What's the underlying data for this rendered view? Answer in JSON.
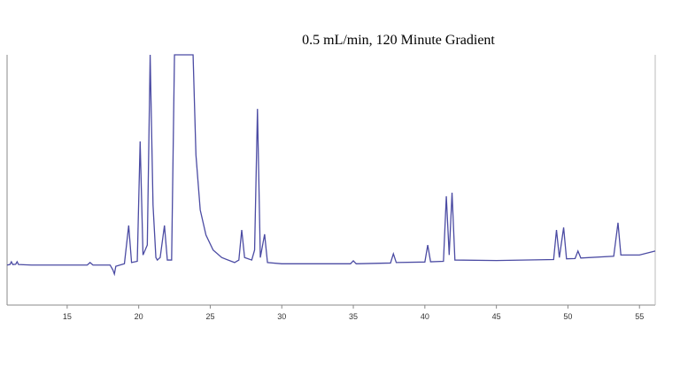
{
  "chart_data": {
    "type": "line",
    "title": "0.5 mL/min, 120 Minute Gradient",
    "x": [
      10.8,
      11.0,
      11.1,
      11.2,
      11.4,
      11.5,
      11.6,
      12.5,
      16.4,
      16.6,
      16.8,
      18.0,
      18.2,
      18.3,
      18.4,
      19.0,
      19.3,
      19.5,
      19.9,
      20.1,
      20.3,
      20.6,
      20.8,
      21.0,
      21.2,
      21.3,
      21.5,
      21.8,
      22.0,
      22.3,
      22.5,
      23.8,
      24.0,
      24.3,
      24.7,
      25.2,
      25.8,
      26.7,
      27.0,
      27.2,
      27.4,
      27.9,
      28.1,
      28.3,
      28.5,
      28.8,
      29.0,
      30.0,
      34.8,
      35.0,
      35.2,
      37.6,
      37.8,
      38.0,
      40.0,
      40.2,
      40.4,
      41.3,
      41.5,
      41.7,
      41.9,
      42.1,
      45.0,
      49.0,
      49.2,
      49.4,
      49.7,
      49.9,
      50.5,
      50.7,
      50.9,
      53.2,
      53.5,
      53.7,
      55.0,
      56.1
    ],
    "series": [
      {
        "color": "#4b4ba3",
        "values": [
          16,
          16.2,
          17.3,
          16.2,
          16.3,
          17.3,
          16.2,
          16,
          16,
          17,
          16,
          16,
          14,
          12.4,
          15.5,
          16.5,
          31.8,
          17,
          17.5,
          65.4,
          20,
          24,
          100,
          40,
          19,
          18,
          19,
          31.8,
          18,
          18,
          100,
          100,
          60,
          38,
          28,
          22,
          19,
          17,
          18,
          30,
          19,
          18,
          22,
          78.4,
          19,
          28.3,
          17,
          16.5,
          16.5,
          17.7,
          16.5,
          16.8,
          20.5,
          17,
          17.2,
          24,
          17.3,
          17.5,
          43.5,
          20,
          44.9,
          18,
          17.8,
          18.2,
          30,
          19,
          31,
          18.5,
          18.6,
          21.6,
          18.8,
          19.5,
          32.9,
          20,
          20,
          21.6
        ]
      }
    ],
    "xlim": [
      10.8,
      56.1
    ],
    "xticks": [
      15,
      20,
      25,
      30,
      35,
      40,
      45,
      50,
      55
    ],
    "ylim": [
      0,
      100
    ]
  }
}
